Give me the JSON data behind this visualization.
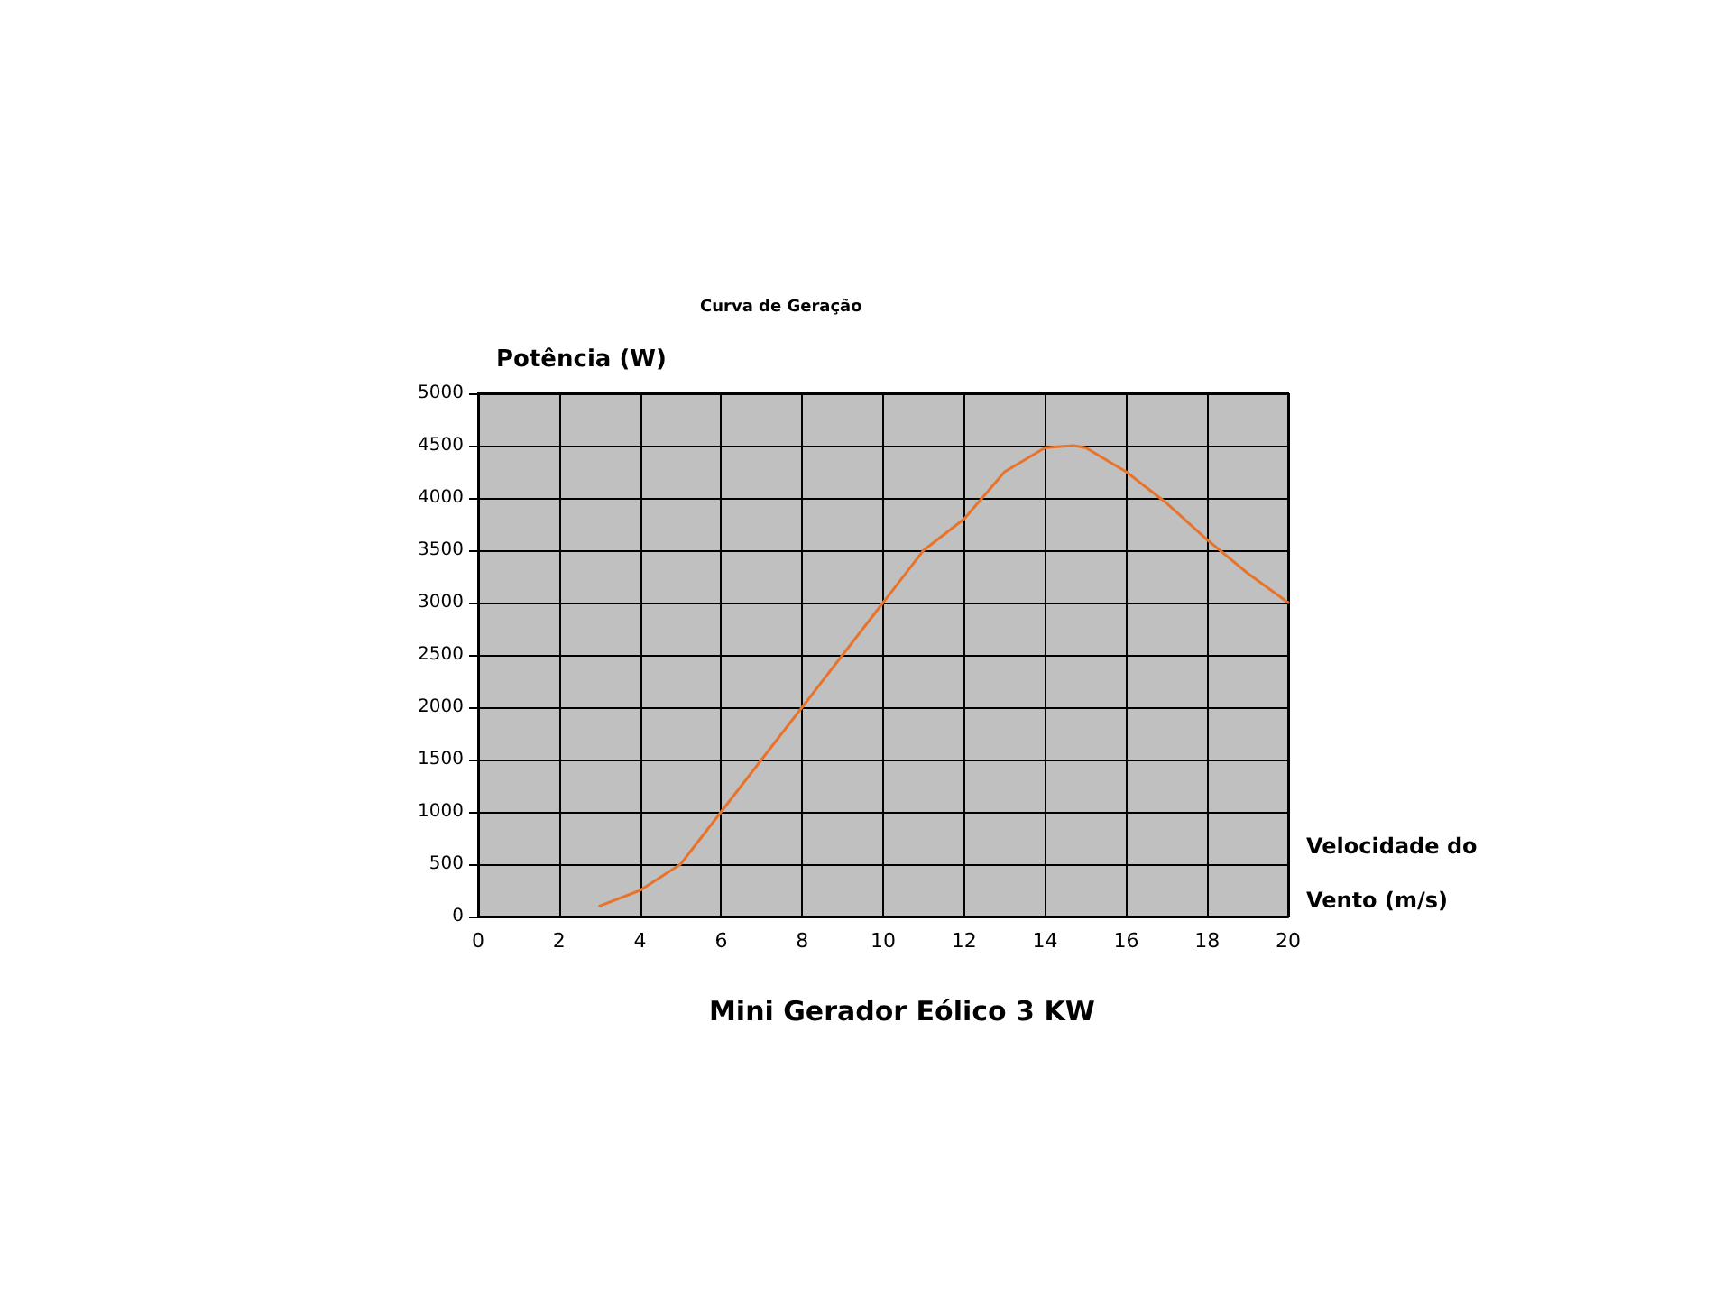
{
  "chart_data": {
    "type": "line",
    "title": "Curva de Geração",
    "subtitle": "Mini Gerador Eólico 3 KW",
    "xlabel": "Velocidade do Vento (m/s)",
    "ylabel": "Potência (W)",
    "series": [
      {
        "color": "#e8742c",
        "x": [
          3,
          4,
          5,
          6,
          7,
          8,
          9,
          10,
          11,
          12,
          13,
          14,
          14.7,
          15,
          16,
          17,
          18,
          19,
          20
        ],
        "values": [
          100,
          250,
          500,
          1000,
          1500,
          2000,
          2500,
          3000,
          3500,
          3800,
          4250,
          4480,
          4500,
          4480,
          4250,
          3950,
          3600,
          3280,
          3000
        ]
      }
    ],
    "xlim": [
      0,
      20
    ],
    "xticks": [
      0,
      2,
      4,
      6,
      8,
      10,
      12,
      14,
      16,
      18,
      20
    ],
    "ylim": [
      0,
      5000
    ],
    "yticks": [
      0,
      500,
      1000,
      1500,
      2000,
      2500,
      3000,
      3500,
      4000,
      4500,
      5000
    ],
    "grid": true,
    "marker": "none",
    "line_style": "solid"
  }
}
